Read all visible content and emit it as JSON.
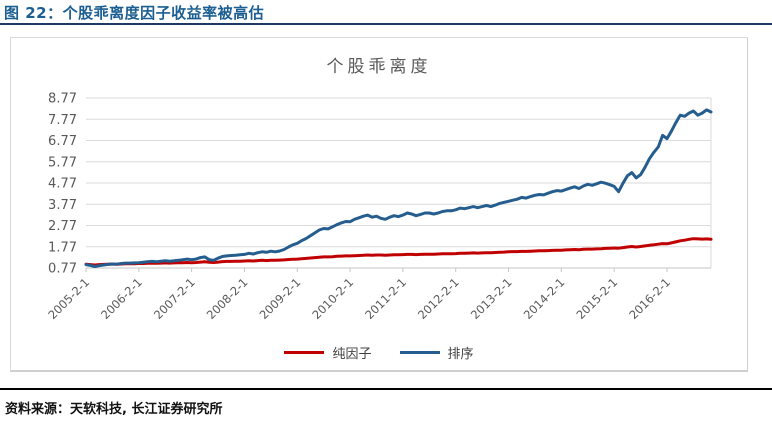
{
  "header": {
    "caption": "图 22：个股乖离度因子收益率被高估"
  },
  "footer": {
    "source": "资料来源：天软科技, 长江证券研究所"
  },
  "colors": {
    "caption_text": "#1B5E91",
    "header_rule": "#1F3864",
    "pure_factor_red": "#C00000",
    "ranking_blue": "#255E8E",
    "gridline": "#DADADA",
    "axis_text": "#595959"
  },
  "chart_data": {
    "type": "line",
    "title": "个股乖离度",
    "xlabel": "",
    "ylabel": "",
    "grid": "horizontal",
    "legend_position": "bottom",
    "ylim": [
      0.77,
      8.77
    ],
    "y_tick_values": [
      0.77,
      1.77,
      2.77,
      3.77,
      4.77,
      5.77,
      6.77,
      7.77,
      8.77
    ],
    "y_tick_labels": [
      "0.77",
      "1.77",
      "2.77",
      "3.77",
      "4.77",
      "5.77",
      "6.77",
      "7.77",
      "8.77"
    ],
    "x_start": "2005-2",
    "x_interval": "monthly",
    "x_tick_positions": [
      0,
      12,
      24,
      36,
      48,
      60,
      72,
      84,
      96,
      108,
      120,
      132
    ],
    "x_tick_labels": [
      "2005-2-1",
      "2006-2-1",
      "2007-2-1",
      "2008-2-1",
      "2009-2-1",
      "2010-2-1",
      "2011-2-1",
      "2012-2-1",
      "2013-2-1",
      "2014-2-1",
      "2015-2-1",
      "2016-2-1"
    ],
    "series": [
      {
        "name": "纯因子",
        "color": "#C00000",
        "values": [
          0.95,
          0.93,
          0.91,
          0.93,
          0.94,
          0.95,
          0.96,
          0.95,
          0.96,
          0.97,
          0.97,
          0.97,
          0.98,
          0.98,
          0.99,
          1.0,
          0.99,
          1.0,
          1.01,
          1.0,
          1.01,
          1.02,
          1.02,
          1.03,
          1.02,
          1.03,
          1.05,
          1.06,
          1.04,
          1.03,
          1.05,
          1.07,
          1.08,
          1.08,
          1.09,
          1.09,
          1.1,
          1.11,
          1.1,
          1.12,
          1.13,
          1.12,
          1.13,
          1.13,
          1.14,
          1.15,
          1.17,
          1.18,
          1.19,
          1.21,
          1.22,
          1.24,
          1.26,
          1.28,
          1.29,
          1.29,
          1.3,
          1.32,
          1.33,
          1.34,
          1.34,
          1.35,
          1.36,
          1.37,
          1.38,
          1.37,
          1.38,
          1.38,
          1.37,
          1.38,
          1.39,
          1.39,
          1.4,
          1.41,
          1.41,
          1.4,
          1.41,
          1.42,
          1.42,
          1.42,
          1.43,
          1.44,
          1.44,
          1.44,
          1.45,
          1.46,
          1.46,
          1.47,
          1.48,
          1.47,
          1.48,
          1.49,
          1.49,
          1.5,
          1.51,
          1.52,
          1.53,
          1.54,
          1.54,
          1.55,
          1.55,
          1.56,
          1.57,
          1.58,
          1.58,
          1.59,
          1.6,
          1.61,
          1.61,
          1.62,
          1.63,
          1.64,
          1.63,
          1.65,
          1.66,
          1.66,
          1.67,
          1.68,
          1.69,
          1.7,
          1.71,
          1.7,
          1.73,
          1.76,
          1.78,
          1.76,
          1.78,
          1.81,
          1.84,
          1.86,
          1.89,
          1.92,
          1.91,
          1.95,
          2.0,
          2.05,
          2.08,
          2.12,
          2.15,
          2.14,
          2.13,
          2.14,
          2.12
        ]
      },
      {
        "name": "排序",
        "color": "#255E8E",
        "values": [
          0.93,
          0.89,
          0.84,
          0.88,
          0.91,
          0.94,
          0.96,
          0.95,
          0.98,
          1.0,
          1.0,
          1.01,
          1.02,
          1.04,
          1.06,
          1.08,
          1.06,
          1.09,
          1.11,
          1.09,
          1.11,
          1.13,
          1.16,
          1.19,
          1.16,
          1.19,
          1.26,
          1.29,
          1.16,
          1.13,
          1.23,
          1.31,
          1.34,
          1.36,
          1.37,
          1.39,
          1.41,
          1.46,
          1.43,
          1.49,
          1.53,
          1.51,
          1.56,
          1.53,
          1.57,
          1.64,
          1.76,
          1.86,
          1.93,
          2.06,
          2.16,
          2.29,
          2.42,
          2.56,
          2.63,
          2.61,
          2.71,
          2.81,
          2.89,
          2.96,
          2.95,
          3.06,
          3.13,
          3.21,
          3.26,
          3.16,
          3.21,
          3.11,
          3.06,
          3.16,
          3.23,
          3.19,
          3.26,
          3.36,
          3.31,
          3.23,
          3.29,
          3.36,
          3.36,
          3.31,
          3.36,
          3.43,
          3.46,
          3.46,
          3.51,
          3.59,
          3.56,
          3.61,
          3.66,
          3.61,
          3.66,
          3.71,
          3.66,
          3.73,
          3.81,
          3.86,
          3.91,
          3.96,
          4.01,
          4.09,
          4.06,
          4.13,
          4.19,
          4.23,
          4.21,
          4.29,
          4.36,
          4.41,
          4.39,
          4.46,
          4.53,
          4.59,
          4.51,
          4.63,
          4.71,
          4.66,
          4.73,
          4.81,
          4.76,
          4.69,
          4.61,
          4.36,
          4.76,
          5.11,
          5.26,
          5.01,
          5.16,
          5.51,
          5.91,
          6.21,
          6.46,
          7.01,
          6.86,
          7.21,
          7.61,
          7.96,
          7.91,
          8.06,
          8.16,
          7.96,
          8.06,
          8.21,
          8.11
        ]
      }
    ]
  }
}
